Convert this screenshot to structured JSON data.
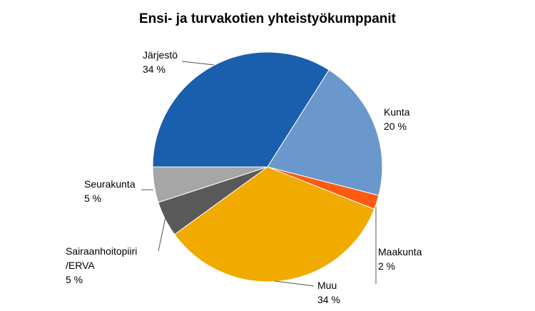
{
  "chart_data": {
    "type": "pie",
    "title": "Ensi- ja turvakotien yhteistyökumppanit",
    "categories": [
      "Järjestö",
      "Kunta",
      "Maakunta",
      "Muu",
      "Sairaanhoitopiiri/ERVA",
      "Seurakunta"
    ],
    "values": [
      34,
      20,
      2,
      34,
      5,
      5
    ],
    "value_labels": [
      "34 %",
      "20 %",
      "2 %",
      "34 %",
      "5 %",
      "5 %"
    ],
    "colors": [
      "#1a5fad",
      "#6a98cc",
      "#ff5a10",
      "#f0aa00",
      "#595959",
      "#a6a6a6"
    ]
  }
}
